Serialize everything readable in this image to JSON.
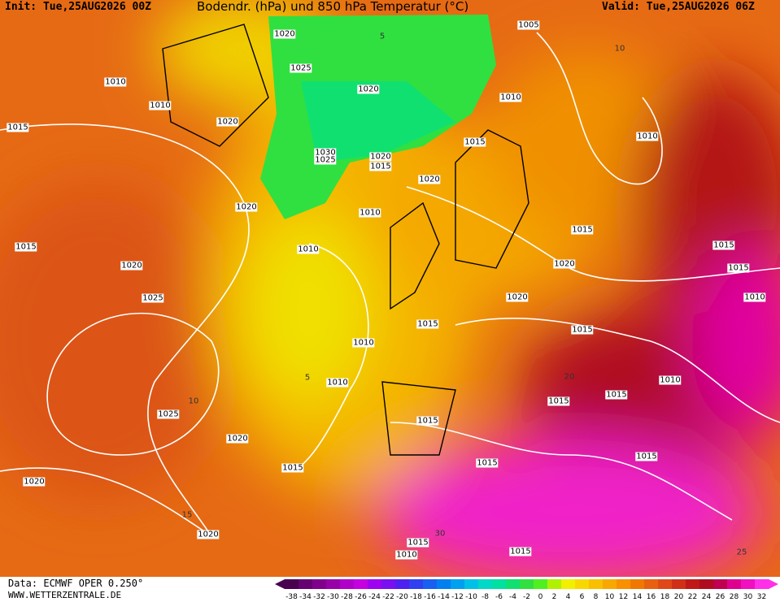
{
  "header": {
    "init": "Init: Tue,25AUG2026 00Z",
    "title": "Bodendr. (hPa) und 850 hPa Temperatur (°C)",
    "valid": "Valid: Tue,25AUG2026 06Z"
  },
  "footer": {
    "data": "Data: ECMWF OPER 0.250°",
    "site": "WWW.WETTERZENTRALE.DE"
  },
  "legend": {
    "labels": [
      -38,
      -34,
      -32,
      -30,
      -28,
      -26,
      -24,
      -22,
      -20,
      -18,
      -16,
      -14,
      -12,
      -10,
      -8,
      -6,
      -4,
      -2,
      0,
      2,
      4,
      6,
      8,
      10,
      12,
      14,
      16,
      18,
      20,
      22,
      24,
      26,
      28,
      30,
      32
    ],
    "colors": [
      "#4a0050",
      "#640070",
      "#80008c",
      "#9800a8",
      "#b000c8",
      "#c400e0",
      "#a000f0",
      "#7a10f0",
      "#5020f0",
      "#3040f0",
      "#1860f0",
      "#0080f0",
      "#00a0f0",
      "#00c0e8",
      "#00d8c8",
      "#00e0a0",
      "#10e070",
      "#30e040",
      "#50f020",
      "#b0f000",
      "#f0f000",
      "#f8d800",
      "#f8c000",
      "#f8a800",
      "#f89000",
      "#f07800",
      "#e86010",
      "#e04818",
      "#d03018",
      "#c01818",
      "#b00c20",
      "#c00050",
      "#e00090",
      "#f010c0",
      "#ff30e8"
    ]
  },
  "isobar_labels": [
    "1020",
    "1005",
    "1025",
    "1020",
    "1010",
    "1010",
    "1020",
    "1010",
    "1015",
    "1010",
    "1015",
    "1030",
    "1025",
    "1020",
    "1015",
    "1020",
    "1010",
    "1020",
    "1015",
    "1020",
    "1010",
    "1015",
    "1015",
    "1020",
    "1015",
    "1020",
    "1025",
    "1010",
    "1015",
    "1015",
    "1010",
    "1010",
    "1010",
    "1015",
    "1015",
    "1025",
    "1015",
    "1020",
    "1015",
    "1015",
    "1015",
    "1020",
    "1020",
    "1015",
    "1010",
    "1015"
  ],
  "isotherm_labels": [
    "5",
    "10",
    "15",
    "25",
    "30",
    "20",
    "10",
    "5"
  ]
}
